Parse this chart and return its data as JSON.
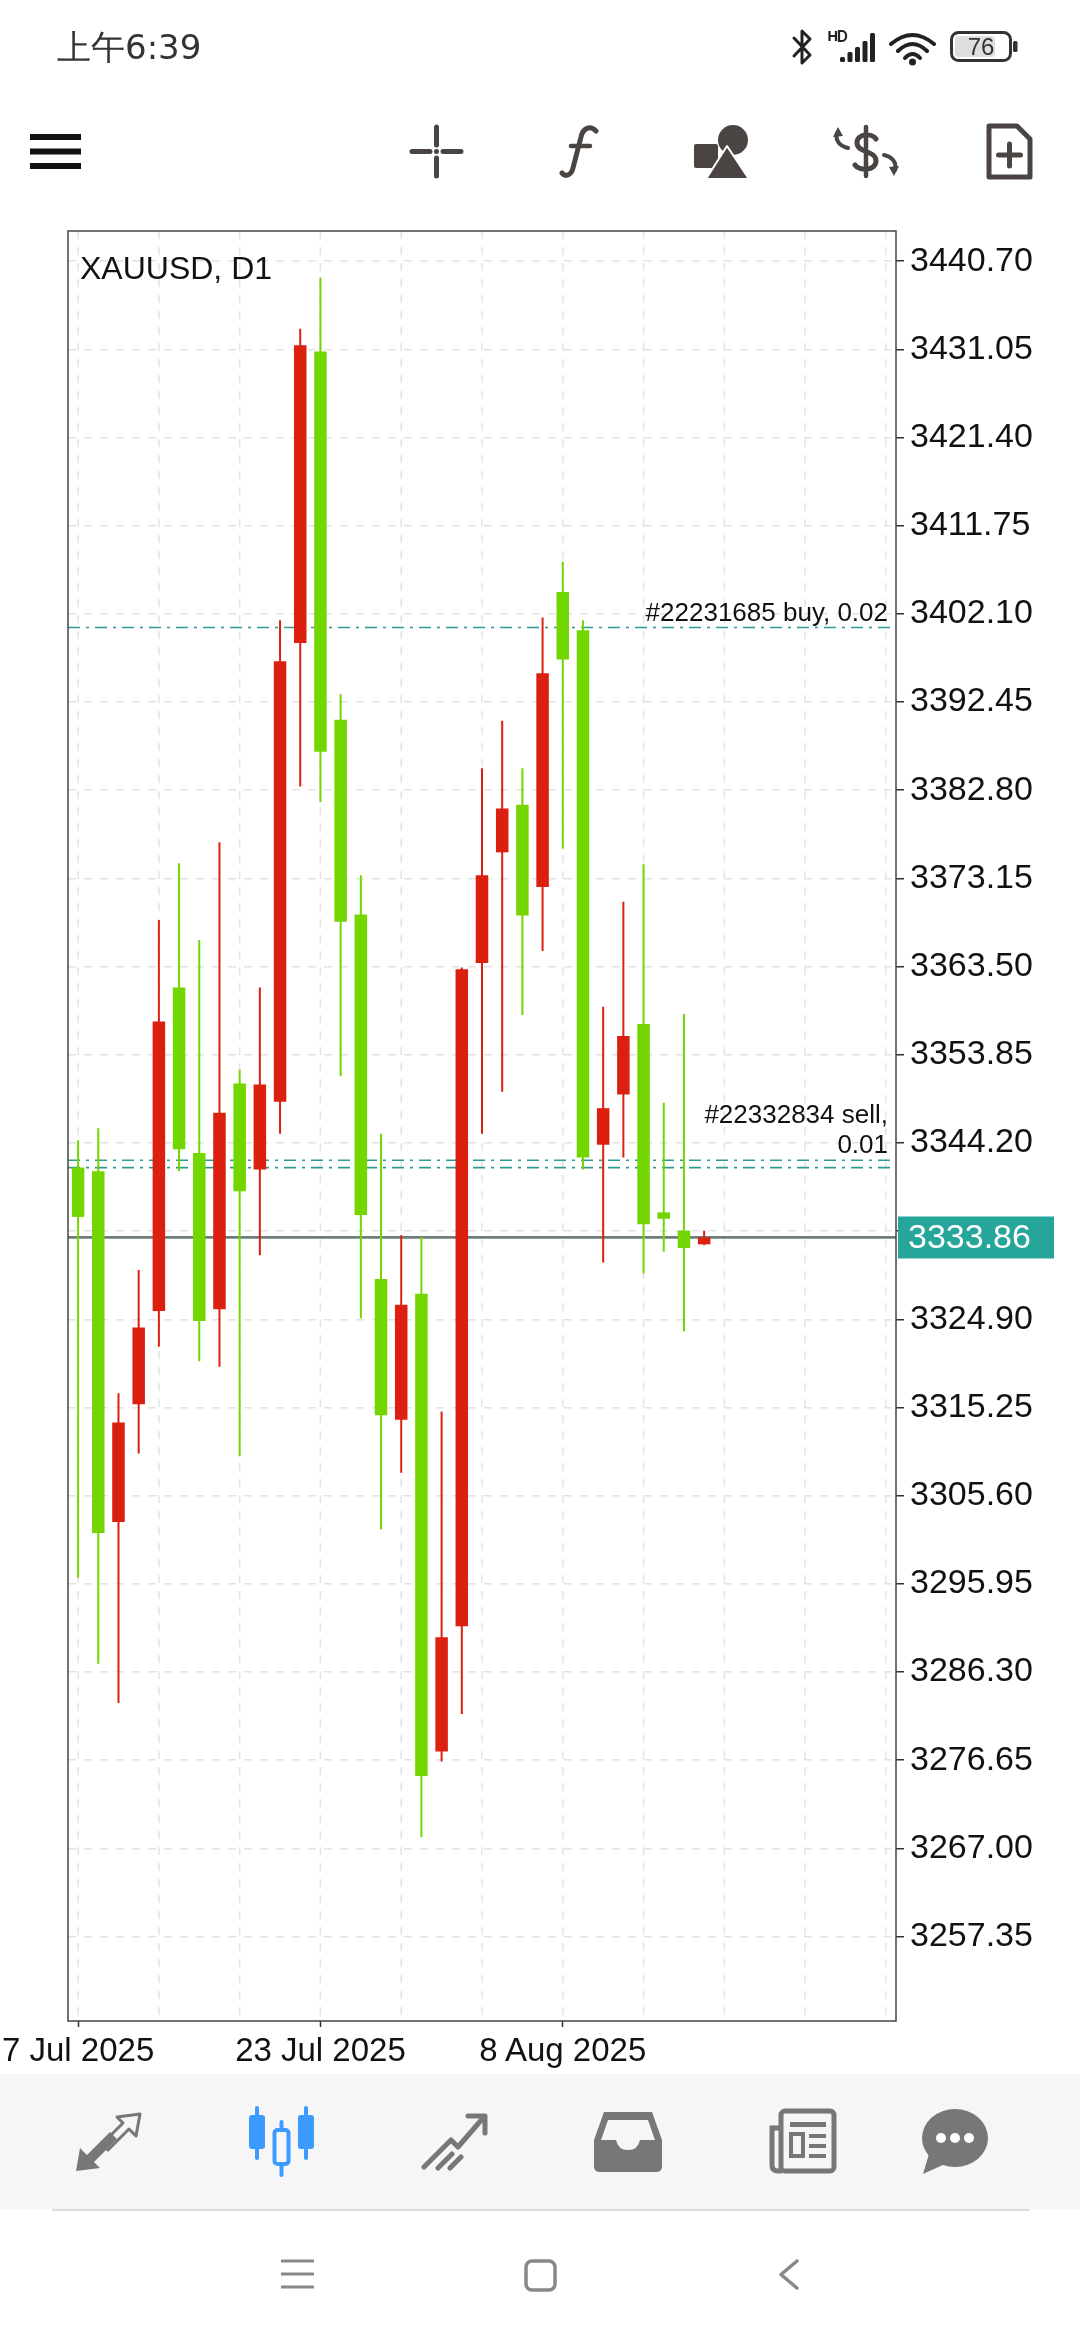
{
  "chart_data": {
    "type": "candlestick",
    "title": "XAUUSD, D1",
    "categories": [
      "7 Jul 2025",
      null,
      null,
      null,
      null,
      null,
      null,
      null,
      null,
      null,
      null,
      null,
      "23 Jul 2025",
      null,
      null,
      null,
      null,
      null,
      null,
      null,
      null,
      null,
      null,
      null,
      "8 Aug 2025",
      null,
      null,
      null,
      null,
      null,
      null,
      null,
      null,
      null,
      null,
      null,
      null,
      null,
      null,
      null,
      null
    ],
    "ohlc": [
      [
        3341.5,
        3344.5,
        3296.6,
        3336.1
      ],
      [
        3341.1,
        3345.8,
        3287.2,
        3301.5
      ],
      [
        3302.7,
        3316.8,
        3282.9,
        3313.6
      ],
      [
        3315.6,
        3330.3,
        3310.2,
        3324.0
      ],
      [
        3325.8,
        3368.6,
        3321.9,
        3357.5
      ],
      [
        3361.2,
        3374.8,
        3341.1,
        3343.5
      ],
      [
        3343.1,
        3366.4,
        3320.3,
        3324.7
      ],
      [
        3326.0,
        3377.1,
        3319.7,
        3347.5
      ],
      [
        3350.7,
        3352.2,
        3309.9,
        3338.9
      ],
      [
        3341.3,
        3361.2,
        3331.9,
        3350.6
      ],
      [
        3348.7,
        3401.4,
        3345.2,
        3396.9
      ],
      [
        3398.9,
        3433.3,
        3383.2,
        3431.5
      ],
      [
        3430.8,
        3438.9,
        3381.5,
        3387.0
      ],
      [
        3390.5,
        3393.3,
        3351.5,
        3368.4
      ],
      [
        3369.2,
        3373.5,
        3325.0,
        3336.3
      ],
      [
        3329.3,
        3345.2,
        3301.9,
        3314.4
      ],
      [
        3313.9,
        3334.1,
        3308.1,
        3326.5
      ],
      [
        3327.7,
        3333.9,
        3268.2,
        3274.9
      ],
      [
        3277.6,
        3314.8,
        3276.5,
        3290.1
      ],
      [
        3291.3,
        3363.4,
        3281.7,
        3363.2
      ],
      [
        3363.9,
        3385.2,
        3345.2,
        3373.5
      ],
      [
        3376.0,
        3390.4,
        3349.8,
        3380.8
      ],
      [
        3381.2,
        3385.2,
        3358.2,
        3369.1
      ],
      [
        3372.2,
        3401.7,
        3365.2,
        3395.6
      ],
      [
        3404.5,
        3407.8,
        3376.4,
        3397.1
      ],
      [
        3400.3,
        3401.4,
        3341.3,
        3342.6
      ],
      [
        3344.0,
        3359.1,
        3331.1,
        3348.0
      ],
      [
        3349.5,
        3370.6,
        3342.6,
        3355.9
      ],
      [
        3357.2,
        3374.7,
        3329.9,
        3335.3
      ],
      [
        3336.6,
        3348.6,
        3332.3,
        3335.9
      ],
      [
        3334.6,
        3358.3,
        3323.6,
        3332.7
      ],
      [
        3333.1,
        3334.6,
        3333.0,
        3333.86
      ],
      null,
      null,
      null,
      null,
      null,
      null,
      null,
      null,
      null
    ],
    "colors": [
      "#74d600",
      "#74d600",
      "#dc2010",
      "#dc2010",
      "#dc2010",
      "#74d600",
      "#74d600",
      "#dc2010",
      "#74d600",
      "#dc2010",
      "#dc2010",
      "#dc2010",
      "#74d600",
      "#74d600",
      "#74d600",
      "#74d600",
      "#dc2010",
      "#74d600",
      "#dc2010",
      "#dc2010",
      "#dc2010",
      "#dc2010",
      "#74d600",
      "#dc2010",
      "#74d600",
      "#74d600",
      "#dc2010",
      "#dc2010",
      "#74d600",
      "#74d600",
      "#74d600",
      "#dc2010",
      null,
      null,
      null,
      null,
      null,
      null,
      null,
      null,
      null
    ],
    "ylim": [
      3248.1,
      3444.0
    ],
    "yticks": [
      {
        "value": 3440.7,
        "label": "3440.70"
      },
      3431.05,
      {
        "value": 3421.4,
        "label": "3421.40"
      },
      3411.75,
      {
        "value": 3402.1,
        "label": "3402.10"
      },
      3392.45,
      {
        "value": 3382.8,
        "label": "3382.80"
      },
      3373.15,
      {
        "value": 3363.5,
        "label": "3363.50"
      },
      3353.85,
      {
        "value": 3344.2,
        "label": "3344.20"
      },
      {
        "value": 3334.55,
        "label": null
      },
      {
        "value": 3324.9,
        "label": "3324.90"
      },
      3315.25,
      {
        "value": 3305.6,
        "label": "3305.60"
      },
      3295.95,
      {
        "value": 3286.3,
        "label": "3286.30"
      },
      3276.65,
      {
        "value": 3267,
        "label": "3267.00"
      },
      3257.35
    ],
    "grid": true,
    "ref_lines": [
      {
        "axis": "y",
        "value": 3400.6,
        "label": "#22231685 buy, 0.02",
        "color": "#2f9a94",
        "line_style": "dashdot"
      },
      {
        "axis": "y",
        "value": 3342.3,
        "label": "#22332834 sell, 0.01",
        "color": "#2f9a94",
        "line_style": "dashdot"
      },
      {
        "axis": "y",
        "value": 3341.5,
        "color": "#2f9a94",
        "line_style": "dashdot"
      },
      {
        "axis": "y",
        "value": 3333.86,
        "label": "3333.86",
        "color": "#6d7f7c",
        "line_style": "solid"
      }
    ],
    "annotations": [
      "上午6:39",
      "76"
    ]
  }
}
